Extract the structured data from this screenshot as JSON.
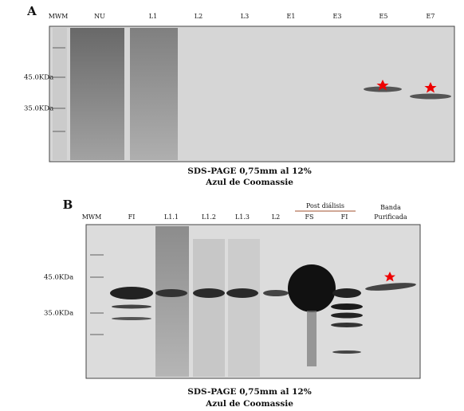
{
  "panel_a": {
    "label": "A",
    "lanes": [
      "MWM",
      "NU",
      "L1",
      "L2",
      "L3",
      "E1",
      "E3",
      "E5",
      "E7"
    ],
    "markers": [
      "45.0KDa",
      "35.0KDa"
    ],
    "caption": [
      "SDS-PAGE  0,75mm al 12%",
      "Azul de Coomassie"
    ]
  },
  "panel_b": {
    "label": "B",
    "lanes": [
      "MWM",
      "FI",
      "L1.1",
      "L1.2",
      "L1.3",
      "L2",
      "FS",
      "FI"
    ],
    "group_label": "Post diálisis",
    "purified_label": [
      "Banda",
      "Purificada"
    ],
    "markers": [
      "45.0KDa",
      "35.0KDa"
    ],
    "caption": [
      "SDS-PAGE  0,75mm al 12%",
      "Azul de Coomassie"
    ]
  }
}
